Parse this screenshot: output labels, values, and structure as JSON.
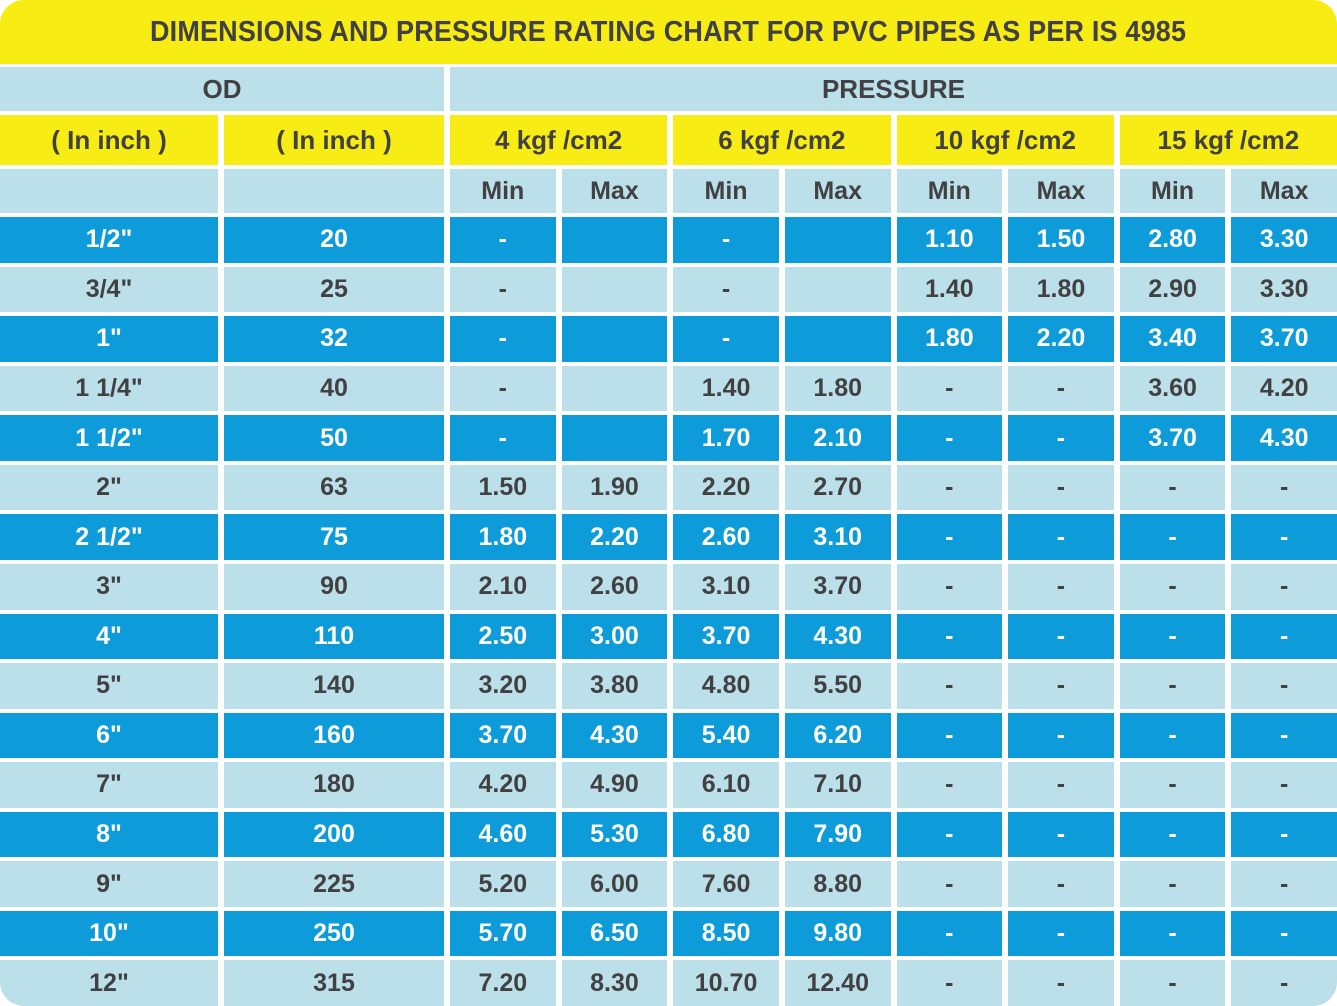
{
  "colors": {
    "yellow": "#F8EC15",
    "blue": "#0D9BD9",
    "lightblue": "#BCE0E9",
    "dark": "#414042"
  },
  "chart_data": {
    "type": "table",
    "title": "DIMENSIONS AND PRESSURE RATING CHART FOR PVC PIPES AS PER IS 4985",
    "column_groups": [
      {
        "label": "OD",
        "span": 2
      },
      {
        "label": "PRESSURE",
        "span": 8
      }
    ],
    "sub_headers": [
      "( In inch )",
      "( In inch )",
      "4 kgf /cm2",
      "6 kgf /cm2",
      "10 kgf /cm2",
      "15 kgf /cm2"
    ],
    "min_max_row": [
      "",
      "",
      "Min",
      "Max",
      "Min",
      "Max",
      "Min",
      "Max",
      "Min",
      "Max"
    ],
    "rows": [
      [
        "1/2\"",
        "20",
        "-",
        "",
        "-",
        "",
        "1.10",
        "1.50",
        "2.80",
        "3.30"
      ],
      [
        "3/4\"",
        "25",
        "-",
        "",
        "-",
        "",
        "1.40",
        "1.80",
        "2.90",
        "3.30"
      ],
      [
        "1\"",
        "32",
        "-",
        "",
        "-",
        "",
        "1.80",
        "2.20",
        "3.40",
        "3.70"
      ],
      [
        "1 1/4\"",
        "40",
        "-",
        "",
        "1.40",
        "1.80",
        "-",
        "-",
        "3.60",
        "4.20"
      ],
      [
        "1 1/2\"",
        "50",
        "-",
        "",
        "1.70",
        "2.10",
        "-",
        "-",
        "3.70",
        "4.30"
      ],
      [
        "2\"",
        "63",
        "1.50",
        "1.90",
        "2.20",
        "2.70",
        "-",
        "-",
        "-",
        "-"
      ],
      [
        "2 1/2\"",
        "75",
        "1.80",
        "2.20",
        "2.60",
        "3.10",
        "-",
        "-",
        "-",
        "-"
      ],
      [
        "3\"",
        "90",
        "2.10",
        "2.60",
        "3.10",
        "3.70",
        "-",
        "-",
        "-",
        "-"
      ],
      [
        "4\"",
        "110",
        "2.50",
        "3.00",
        "3.70",
        "4.30",
        "-",
        "-",
        "-",
        "-"
      ],
      [
        "5\"",
        "140",
        "3.20",
        "3.80",
        "4.80",
        "5.50",
        "-",
        "-",
        "-",
        "-"
      ],
      [
        "6\"",
        "160",
        "3.70",
        "4.30",
        "5.40",
        "6.20",
        "-",
        "-",
        "-",
        "-"
      ],
      [
        "7\"",
        "180",
        "4.20",
        "4.90",
        "6.10",
        "7.10",
        "-",
        "-",
        "-",
        "-"
      ],
      [
        "8\"",
        "200",
        "4.60",
        "5.30",
        "6.80",
        "7.90",
        "-",
        "-",
        "-",
        "-"
      ],
      [
        "9\"",
        "225",
        "5.20",
        "6.00",
        "7.60",
        "8.80",
        "-",
        "-",
        "-",
        "-"
      ],
      [
        "10\"",
        "250",
        "5.70",
        "6.50",
        "8.50",
        "9.80",
        "-",
        "-",
        "-",
        "-"
      ],
      [
        "12\"",
        "315",
        "7.20",
        "8.30",
        "10.70",
        "12.40",
        "-",
        "-",
        "-",
        "-"
      ]
    ]
  }
}
